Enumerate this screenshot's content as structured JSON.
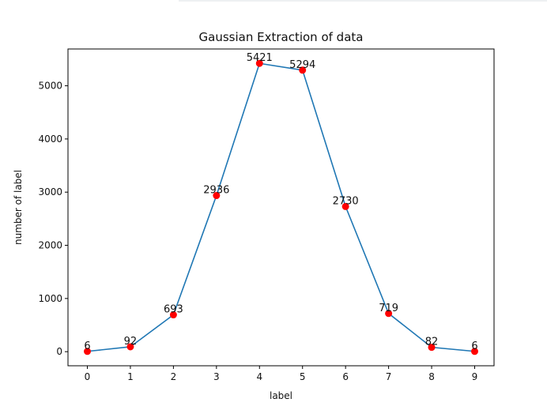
{
  "chart_data": {
    "type": "line",
    "title": "Gaussian Extraction of data",
    "xlabel": "label",
    "ylabel": "number of label",
    "x": [
      0,
      1,
      2,
      3,
      4,
      5,
      6,
      7,
      8,
      9
    ],
    "values": [
      6,
      92,
      693,
      2936,
      5421,
      5294,
      2730,
      719,
      82,
      6
    ],
    "data_labels": [
      "6",
      "92",
      "693",
      "2936",
      "5421",
      "5294",
      "2730",
      "719",
      "82",
      "6"
    ],
    "xticks": [
      "0",
      "1",
      "2",
      "3",
      "4",
      "5",
      "6",
      "7",
      "8",
      "9"
    ],
    "yticks": [
      "0",
      "1000",
      "2000",
      "3000",
      "4000",
      "5000"
    ],
    "xlim": [
      -0.45,
      9.45
    ],
    "ylim": [
      -265,
      5692
    ],
    "grid": false,
    "line_color": "#1f77b4",
    "marker_color": "#ff0000"
  }
}
